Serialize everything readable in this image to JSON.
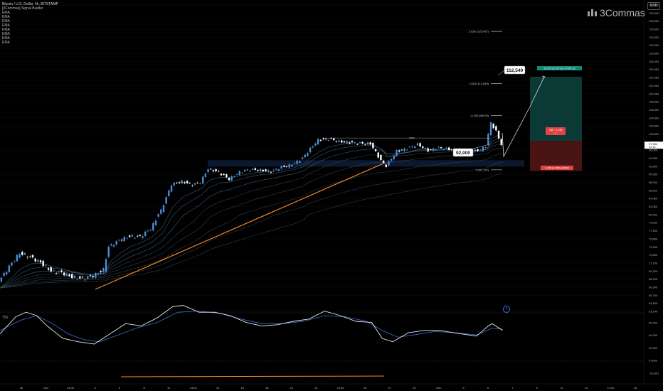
{
  "header": {
    "symbol": "Bitcoin / U.S. Dollar, 4h, BITSTAMP",
    "indicators": [
      "[3Commas] Signal Builder",
      "EMA",
      "EMA",
      "EMA",
      "EMA",
      "EMA",
      "EMA",
      "EMA",
      "EMA"
    ],
    "brand": "3Commas",
    "currency": "USD"
  },
  "tsi_label": "TSI",
  "chart_data": {
    "type": "line",
    "price_axis": {
      "ticks": [
        "132,000",
        "130,000",
        "128,000",
        "126,000",
        "124,000",
        "122,000",
        "120,000",
        "118,000",
        "116,000",
        "114,000",
        "112,000",
        "110,000",
        "108,000",
        "106,000",
        "104,000",
        "102,000",
        "100,000",
        "98,000",
        "96,000",
        "94,000",
        "92,000",
        "90,000",
        "88,000",
        "86,000",
        "84,000",
        "82,000",
        "80,000",
        "79,000",
        "77,400",
        "75,800",
        "74,200",
        "72,600",
        "71,100",
        "69,700",
        "68,200",
        "66,900",
        "65,700",
        "64,500",
        "63,140"
      ],
      "current_price_label": "97,394",
      "current_price_sub": "40:16"
    },
    "x_axis": {
      "ticks": [
        "30",
        "Nov",
        "14:00",
        "4",
        "6",
        "8",
        "11",
        "14:00",
        "13",
        "15",
        "18",
        "20",
        "22",
        "14:00",
        "25",
        "27",
        "29",
        "Dec",
        "3",
        "5",
        "7",
        "9",
        "11",
        "13",
        "14:00",
        "16"
      ]
    },
    "price_series": [
      {
        "t": 0,
        "p": 67800
      },
      {
        "t": 4,
        "p": 70500
      },
      {
        "t": 8,
        "p": 72900
      },
      {
        "t": 12,
        "p": 72200
      },
      {
        "t": 16,
        "p": 71200
      },
      {
        "t": 20,
        "p": 69700
      },
      {
        "t": 24,
        "p": 69400
      },
      {
        "t": 28,
        "p": 68600
      },
      {
        "t": 32,
        "p": 68300
      },
      {
        "t": 36,
        "p": 68800
      },
      {
        "t": 40,
        "p": 69900
      },
      {
        "t": 42,
        "p": 74200
      },
      {
        "t": 46,
        "p": 75500
      },
      {
        "t": 50,
        "p": 76300
      },
      {
        "t": 54,
        "p": 76200
      },
      {
        "t": 58,
        "p": 77800
      },
      {
        "t": 62,
        "p": 81000
      },
      {
        "t": 66,
        "p": 87500
      },
      {
        "t": 70,
        "p": 88200
      },
      {
        "t": 74,
        "p": 87400
      },
      {
        "t": 77,
        "p": 88000
      },
      {
        "t": 80,
        "p": 91400
      },
      {
        "t": 84,
        "p": 90500
      },
      {
        "t": 88,
        "p": 88800
      },
      {
        "t": 92,
        "p": 90500
      },
      {
        "t": 96,
        "p": 91200
      },
      {
        "t": 100,
        "p": 91000
      },
      {
        "t": 104,
        "p": 90700
      },
      {
        "t": 108,
        "p": 91800
      },
      {
        "t": 112,
        "p": 92300
      },
      {
        "t": 116,
        "p": 94000
      },
      {
        "t": 118,
        "p": 95600
      },
      {
        "t": 122,
        "p": 98500
      },
      {
        "t": 126,
        "p": 98800
      },
      {
        "t": 130,
        "p": 98100
      },
      {
        "t": 134,
        "p": 97900
      },
      {
        "t": 138,
        "p": 97700
      },
      {
        "t": 142,
        "p": 97600
      },
      {
        "t": 146,
        "p": 93400
      },
      {
        "t": 148,
        "p": 92100
      },
      {
        "t": 152,
        "p": 95700
      },
      {
        "t": 156,
        "p": 96400
      },
      {
        "t": 160,
        "p": 97400
      },
      {
        "t": 164,
        "p": 95900
      },
      {
        "t": 168,
        "p": 96600
      },
      {
        "t": 172,
        "p": 96200
      },
      {
        "t": 176,
        "p": 96000
      },
      {
        "t": 180,
        "p": 95600
      },
      {
        "t": 184,
        "p": 96100
      },
      {
        "t": 186,
        "p": 97000
      },
      {
        "t": 188,
        "p": 102800
      },
      {
        "t": 190,
        "p": 100600
      },
      {
        "t": 192,
        "p": 97400
      }
    ],
    "annotations": {
      "fib_levels": [
        {
          "label": "2.618 (125,457)",
          "value": 125457
        },
        {
          "label": "1.618 (112,549)",
          "value": 112549
        },
        {
          "label": "1 (104,569.05)",
          "value": 104569
        },
        {
          "label": "0 (91,112)",
          "value": 91112
        }
      ],
      "target_label": "112,549",
      "support_label": "92,000",
      "level_label": "XXX",
      "take_profit": "15,025 (15.91%) 107997.32",
      "entry_box": "489 · 0.138",
      "entry_box_sub": "1",
      "stop_loss": "1,378 (1.55%) 99000",
      "long_target_top": 114200,
      "long_entry": 98300,
      "long_stop": 90800,
      "support_zone": [
        91900,
        93500
      ]
    },
    "tsi": {
      "axis_ticks": [
        "60,000",
        "40,000",
        "20,000",
        "0.0000",
        "-20,000"
      ],
      "tsi_line": [
        {
          "t": 0,
          "v": 8
        },
        {
          "t": 6,
          "v": 38
        },
        {
          "t": 10,
          "v": 46
        },
        {
          "t": 14,
          "v": 40
        },
        {
          "t": 18,
          "v": 22
        },
        {
          "t": 24,
          "v": 0
        },
        {
          "t": 30,
          "v": -6
        },
        {
          "t": 36,
          "v": -10
        },
        {
          "t": 42,
          "v": 8
        },
        {
          "t": 48,
          "v": 26
        },
        {
          "t": 54,
          "v": 22
        },
        {
          "t": 60,
          "v": 36
        },
        {
          "t": 66,
          "v": 56
        },
        {
          "t": 70,
          "v": 58
        },
        {
          "t": 76,
          "v": 46
        },
        {
          "t": 82,
          "v": 46
        },
        {
          "t": 88,
          "v": 40
        },
        {
          "t": 94,
          "v": 28
        },
        {
          "t": 100,
          "v": 22
        },
        {
          "t": 106,
          "v": 24
        },
        {
          "t": 112,
          "v": 30
        },
        {
          "t": 118,
          "v": 34
        },
        {
          "t": 124,
          "v": 48
        },
        {
          "t": 130,
          "v": 40
        },
        {
          "t": 136,
          "v": 30
        },
        {
          "t": 142,
          "v": 28
        },
        {
          "t": 146,
          "v": 0
        },
        {
          "t": 150,
          "v": -6
        },
        {
          "t": 156,
          "v": 10
        },
        {
          "t": 162,
          "v": 14
        },
        {
          "t": 168,
          "v": 14
        },
        {
          "t": 176,
          "v": 8
        },
        {
          "t": 182,
          "v": 4
        },
        {
          "t": 186,
          "v": 20
        },
        {
          "t": 188,
          "v": 26
        },
        {
          "t": 192,
          "v": 14
        }
      ],
      "signal_line": [
        {
          "t": 0,
          "v": 14
        },
        {
          "t": 8,
          "v": 32
        },
        {
          "t": 14,
          "v": 40
        },
        {
          "t": 20,
          "v": 26
        },
        {
          "t": 26,
          "v": 8
        },
        {
          "t": 32,
          "v": -2
        },
        {
          "t": 38,
          "v": -6
        },
        {
          "t": 44,
          "v": 4
        },
        {
          "t": 52,
          "v": 18
        },
        {
          "t": 60,
          "v": 28
        },
        {
          "t": 68,
          "v": 46
        },
        {
          "t": 76,
          "v": 48
        },
        {
          "t": 84,
          "v": 44
        },
        {
          "t": 92,
          "v": 34
        },
        {
          "t": 100,
          "v": 26
        },
        {
          "t": 108,
          "v": 26
        },
        {
          "t": 116,
          "v": 30
        },
        {
          "t": 124,
          "v": 40
        },
        {
          "t": 132,
          "v": 38
        },
        {
          "t": 140,
          "v": 30
        },
        {
          "t": 146,
          "v": 14
        },
        {
          "t": 152,
          "v": 2
        },
        {
          "t": 158,
          "v": 6
        },
        {
          "t": 166,
          "v": 12
        },
        {
          "t": 174,
          "v": 10
        },
        {
          "t": 182,
          "v": 6
        },
        {
          "t": 188,
          "v": 18
        },
        {
          "t": 192,
          "v": 16
        }
      ]
    },
    "colors": {
      "up": "#4c8ed9",
      "down": "#ffffff",
      "trend": "#f08a24",
      "tp_zone": "#0b3a36",
      "sl_zone": "#4a1414",
      "tsi": "#e8e8e8",
      "signal": "#3d6fd6"
    }
  }
}
